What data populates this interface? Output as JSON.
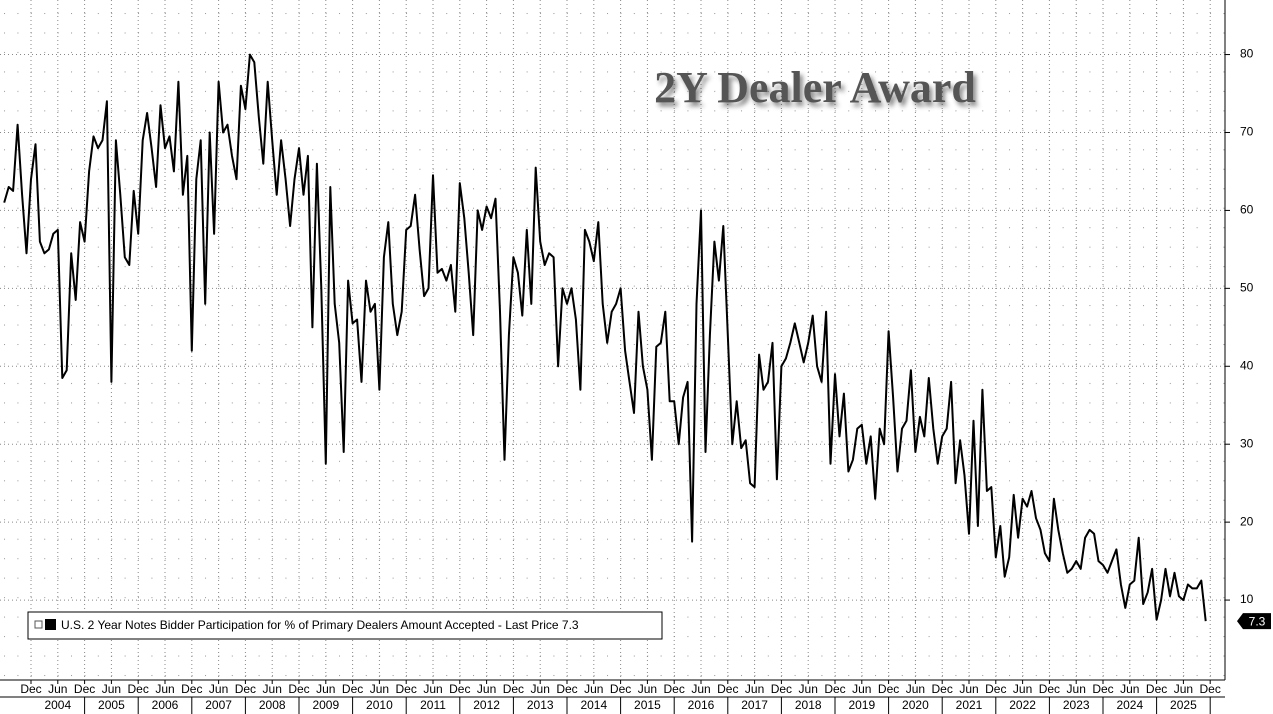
{
  "chart_data": {
    "type": "line",
    "title": "2Y Dealer Award",
    "x": [
      "2003-06",
      "2003-07",
      "2003-08",
      "2003-09",
      "2003-10",
      "2003-11",
      "2003-12",
      "2004-01",
      "2004-02",
      "2004-03",
      "2004-04",
      "2004-05",
      "2004-06",
      "2004-07",
      "2004-08",
      "2004-09",
      "2004-10",
      "2004-11",
      "2004-12",
      "2005-01",
      "2005-02",
      "2005-03",
      "2005-04",
      "2005-05",
      "2005-06",
      "2005-07",
      "2005-08",
      "2005-09",
      "2005-10",
      "2005-11",
      "2005-12",
      "2006-01",
      "2006-02",
      "2006-03",
      "2006-04",
      "2006-05",
      "2006-06",
      "2006-07",
      "2006-08",
      "2006-09",
      "2006-10",
      "2006-11",
      "2006-12",
      "2007-01",
      "2007-02",
      "2007-03",
      "2007-04",
      "2007-05",
      "2007-06",
      "2007-07",
      "2007-08",
      "2007-09",
      "2007-10",
      "2007-11",
      "2007-12",
      "2008-01",
      "2008-02",
      "2008-03",
      "2008-04",
      "2008-05",
      "2008-06",
      "2008-07",
      "2008-08",
      "2008-09",
      "2008-10",
      "2008-11",
      "2008-12",
      "2009-01",
      "2009-02",
      "2009-03",
      "2009-04",
      "2009-05",
      "2009-06",
      "2009-07",
      "2009-08",
      "2009-09",
      "2009-10",
      "2009-11",
      "2009-12",
      "2010-01",
      "2010-02",
      "2010-03",
      "2010-04",
      "2010-05",
      "2010-06",
      "2010-07",
      "2010-08",
      "2010-09",
      "2010-10",
      "2010-11",
      "2010-12",
      "2011-01",
      "2011-02",
      "2011-03",
      "2011-04",
      "2011-05",
      "2011-06",
      "2011-07",
      "2011-08",
      "2011-09",
      "2011-10",
      "2011-11",
      "2011-12",
      "2012-01",
      "2012-02",
      "2012-03",
      "2012-04",
      "2012-05",
      "2012-06",
      "2012-07",
      "2012-08",
      "2012-09",
      "2012-10",
      "2012-11",
      "2012-12",
      "2013-01",
      "2013-02",
      "2013-03",
      "2013-04",
      "2013-05",
      "2013-06",
      "2013-07",
      "2013-08",
      "2013-09",
      "2013-10",
      "2013-11",
      "2013-12",
      "2014-01",
      "2014-02",
      "2014-03",
      "2014-04",
      "2014-05",
      "2014-06",
      "2014-07",
      "2014-08",
      "2014-09",
      "2014-10",
      "2014-11",
      "2014-12",
      "2015-01",
      "2015-02",
      "2015-03",
      "2015-04",
      "2015-05",
      "2015-06",
      "2015-07",
      "2015-08",
      "2015-09",
      "2015-10",
      "2015-11",
      "2015-12",
      "2016-01",
      "2016-02",
      "2016-03",
      "2016-04",
      "2016-05",
      "2016-06",
      "2016-07",
      "2016-08",
      "2016-09",
      "2016-10",
      "2016-11",
      "2016-12",
      "2017-01",
      "2017-02",
      "2017-03",
      "2017-04",
      "2017-05",
      "2017-06",
      "2017-07",
      "2017-08",
      "2017-09",
      "2017-10",
      "2017-11",
      "2017-12",
      "2018-01",
      "2018-02",
      "2018-03",
      "2018-04",
      "2018-05",
      "2018-06",
      "2018-07",
      "2018-08",
      "2018-09",
      "2018-10",
      "2018-11",
      "2018-12",
      "2019-01",
      "2019-02",
      "2019-03",
      "2019-04",
      "2019-05",
      "2019-06",
      "2019-07",
      "2019-08",
      "2019-09",
      "2019-10",
      "2019-11",
      "2019-12",
      "2020-01",
      "2020-02",
      "2020-03",
      "2020-04",
      "2020-05",
      "2020-06",
      "2020-07",
      "2020-08",
      "2020-09",
      "2020-10",
      "2020-11",
      "2020-12",
      "2021-01",
      "2021-02",
      "2021-03",
      "2021-04",
      "2021-05",
      "2021-06",
      "2021-07",
      "2021-08",
      "2021-09",
      "2021-10",
      "2021-11",
      "2021-12",
      "2022-01",
      "2022-02",
      "2022-03",
      "2022-04",
      "2022-05",
      "2022-06",
      "2022-07",
      "2022-08",
      "2022-09",
      "2022-10",
      "2022-11",
      "2022-12",
      "2023-01",
      "2023-02",
      "2023-03",
      "2023-04",
      "2023-05",
      "2023-06",
      "2023-07",
      "2023-08",
      "2023-09",
      "2023-10",
      "2023-11",
      "2023-12",
      "2024-01",
      "2024-02",
      "2024-03",
      "2024-04",
      "2024-05",
      "2024-06",
      "2024-07",
      "2024-08",
      "2024-09",
      "2024-10",
      "2024-11",
      "2024-12",
      "2025-01",
      "2025-02",
      "2025-03",
      "2025-04",
      "2025-05",
      "2025-06",
      "2025-07",
      "2025-08",
      "2025-09",
      "2025-10",
      "2025-11"
    ],
    "series": [
      {
        "name": "U.S. 2 Year Notes Bidder Participation for % of Primary Dealers Amount Accepted - Last Price 7.3",
        "color": "#000000",
        "values": [
          61,
          63,
          62.5,
          71,
          62,
          54.5,
          64,
          68.5,
          56,
          54.5,
          55,
          57,
          57.5,
          38.5,
          39.5,
          54.5,
          48.5,
          58.5,
          56,
          65,
          69.5,
          68,
          69,
          74,
          38,
          69,
          62,
          54,
          53,
          62.5,
          57,
          69,
          72.5,
          68,
          63,
          73.5,
          68,
          69.5,
          65,
          76.5,
          62,
          67,
          42,
          64,
          69,
          48,
          70,
          57,
          76.5,
          70,
          71,
          67,
          64,
          76,
          73,
          80,
          79,
          72,
          66,
          76.5,
          69,
          62,
          69,
          64,
          58,
          64,
          68,
          62,
          67,
          45,
          66,
          50,
          27.5,
          63,
          48,
          43,
          29,
          51,
          45.5,
          46,
          38,
          51,
          47,
          48,
          37,
          54,
          58.5,
          48,
          44,
          47,
          57.5,
          58,
          62,
          55,
          49,
          50,
          64.5,
          52,
          52.5,
          51,
          53,
          47,
          63.5,
          59,
          52,
          44,
          60,
          57.5,
          60.5,
          59,
          61.5,
          47,
          28,
          44,
          54,
          52,
          46.5,
          57.5,
          48,
          65.5,
          56,
          53,
          54.5,
          54,
          40,
          50,
          48,
          50,
          46,
          37,
          57.5,
          56,
          53.5,
          58.5,
          48,
          43,
          47,
          48,
          50,
          42,
          38,
          34,
          47,
          40,
          37,
          28,
          42.5,
          43,
          47,
          35.5,
          35.5,
          30,
          36,
          38,
          17.5,
          48,
          60,
          29,
          44,
          56,
          51,
          58,
          44,
          30,
          35.5,
          29.5,
          30.5,
          25,
          24.5,
          41.5,
          37,
          38,
          43,
          25.5,
          40,
          41,
          43,
          45.5,
          43,
          40.5,
          43,
          46.5,
          40,
          38,
          47,
          27.5,
          39,
          31,
          36.5,
          26.5,
          28,
          32,
          32.5,
          27.5,
          31,
          23,
          32,
          30,
          44.5,
          36,
          26.5,
          32,
          33,
          39.5,
          29,
          33.5,
          31,
          38.5,
          32,
          27.5,
          31,
          32,
          38,
          25,
          30.5,
          26,
          18.5,
          33,
          19.5,
          37,
          24,
          24.5,
          15.5,
          19.5,
          13,
          15.5,
          23.5,
          18,
          23,
          22,
          24,
          20.5,
          19,
          16,
          15,
          23,
          19,
          16,
          13.5,
          14,
          15,
          14,
          18,
          19,
          18.5,
          15,
          14.5,
          13.5,
          15,
          16.5,
          12,
          9,
          12,
          12.5,
          18,
          9.5,
          11,
          14,
          7.5,
          10,
          14,
          10.5,
          13.5,
          10.5,
          10,
          12,
          11.5,
          11.5,
          12.5,
          7.3
        ]
      }
    ],
    "ylim": [
      0,
      87
    ],
    "yticks": [
      10,
      20,
      30,
      40,
      50,
      60,
      70,
      80
    ],
    "grid": true,
    "xticks": [
      {
        "value": "2003-12",
        "label": "Dec"
      },
      {
        "value": "2004-06",
        "label": "Jun"
      },
      {
        "value": "2004-12",
        "label": "Dec"
      },
      {
        "value": "2005-06",
        "label": "Jun"
      },
      {
        "value": "2005-12",
        "label": "Dec"
      },
      {
        "value": "2006-06",
        "label": "Jun"
      },
      {
        "value": "2006-12",
        "label": "Dec"
      },
      {
        "value": "2007-06",
        "label": "Jun"
      },
      {
        "value": "2007-12",
        "label": "Dec"
      },
      {
        "value": "2008-06",
        "label": "Jun"
      },
      {
        "value": "2008-12",
        "label": "Dec"
      },
      {
        "value": "2009-06",
        "label": "Jun"
      },
      {
        "value": "2009-12",
        "label": "Dec"
      },
      {
        "value": "2010-06",
        "label": "Jun"
      },
      {
        "value": "2010-12",
        "label": "Dec"
      },
      {
        "value": "2011-06",
        "label": "Jun"
      },
      {
        "value": "2011-12",
        "label": "Dec"
      },
      {
        "value": "2012-06",
        "label": "Jun"
      },
      {
        "value": "2012-12",
        "label": "Dec"
      },
      {
        "value": "2013-06",
        "label": "Jun"
      },
      {
        "value": "2013-12",
        "label": "Dec"
      },
      {
        "value": "2014-06",
        "label": "Jun"
      },
      {
        "value": "2014-12",
        "label": "Dec"
      },
      {
        "value": "2015-06",
        "label": "Jun"
      },
      {
        "value": "2015-12",
        "label": "Dec"
      },
      {
        "value": "2016-06",
        "label": "Jun"
      },
      {
        "value": "2016-12",
        "label": "Dec"
      },
      {
        "value": "2017-06",
        "label": "Jun"
      },
      {
        "value": "2017-12",
        "label": "Dec"
      },
      {
        "value": "2018-06",
        "label": "Jun"
      },
      {
        "value": "2018-12",
        "label": "Dec"
      },
      {
        "value": "2019-06",
        "label": "Jun"
      },
      {
        "value": "2019-12",
        "label": "Dec"
      },
      {
        "value": "2020-06",
        "label": "Jun"
      },
      {
        "value": "2020-12",
        "label": "Dec"
      },
      {
        "value": "2021-06",
        "label": "Jun"
      },
      {
        "value": "2021-12",
        "label": "Dec"
      },
      {
        "value": "2022-06",
        "label": "Jun"
      },
      {
        "value": "2022-12",
        "label": "Dec"
      },
      {
        "value": "2023-06",
        "label": "Jun"
      },
      {
        "value": "2023-12",
        "label": "Dec"
      },
      {
        "value": "2024-06",
        "label": "Jun"
      },
      {
        "value": "2024-12",
        "label": "Dec"
      },
      {
        "value": "2025-06",
        "label": "Jun"
      },
      {
        "value": "2025-12",
        "label": "Dec"
      }
    ],
    "years": [
      "2004",
      "2005",
      "2006",
      "2007",
      "2008",
      "2009",
      "2010",
      "2011",
      "2012",
      "2013",
      "2014",
      "2015",
      "2016",
      "2017",
      "2018",
      "2019",
      "2020",
      "2021",
      "2022",
      "2023",
      "2024",
      "2025"
    ]
  }
}
